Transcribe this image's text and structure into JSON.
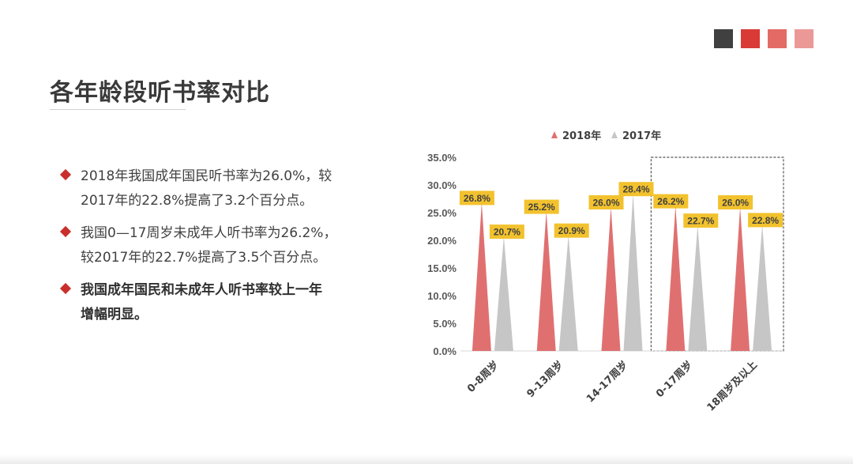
{
  "header": {
    "title": "各年龄段听书率对比",
    "swatches": [
      "#404040",
      "#d93a36",
      "#e46a66",
      "#eb9996"
    ]
  },
  "bullets": [
    {
      "lines": [
        "2018年我国成年国民听书率为26.0%，较",
        "2017年的22.8%提高了3.2个百分点。"
      ],
      "bold": false
    },
    {
      "lines": [
        "我国0—17周岁未成年人听书率为26.2%，",
        "较2017年的22.7%提高了3.5个百分点。"
      ],
      "bold": false
    },
    {
      "lines": [
        "我国成年国民和未成年人听书率较上一年",
        "增幅明显。"
      ],
      "bold": true
    }
  ],
  "chart_data": {
    "type": "bar",
    "bar_shape": "triangle",
    "categories": [
      "0-8周岁",
      "9-13周岁",
      "14-17周岁",
      "0-17周岁",
      "18周岁及以上"
    ],
    "series": [
      {
        "name": "2018年",
        "values": [
          26.8,
          25.2,
          26.0,
          26.2,
          26.0
        ],
        "color": "#e07070"
      },
      {
        "name": "2017年",
        "values": [
          20.7,
          20.9,
          28.4,
          22.7,
          22.8
        ],
        "color": "#c6c6c6"
      }
    ],
    "data_labels": [
      [
        "26.8%",
        "25.2%",
        "26.0%",
        "26.2%",
        "26.0%"
      ],
      [
        "20.7%",
        "20.9%",
        "28.4%",
        "22.7%",
        "22.8%"
      ]
    ],
    "ylim": [
      0,
      35
    ],
    "yticks": [
      "0.0%",
      "5.0%",
      "10.0%",
      "15.0%",
      "20.0%",
      "25.0%",
      "30.0%",
      "35.0%"
    ],
    "label_bg": "#f2c22e",
    "legend_position": "top",
    "grid": false,
    "highlight_categories": [
      "0-17周岁",
      "18周岁及以上"
    ]
  }
}
